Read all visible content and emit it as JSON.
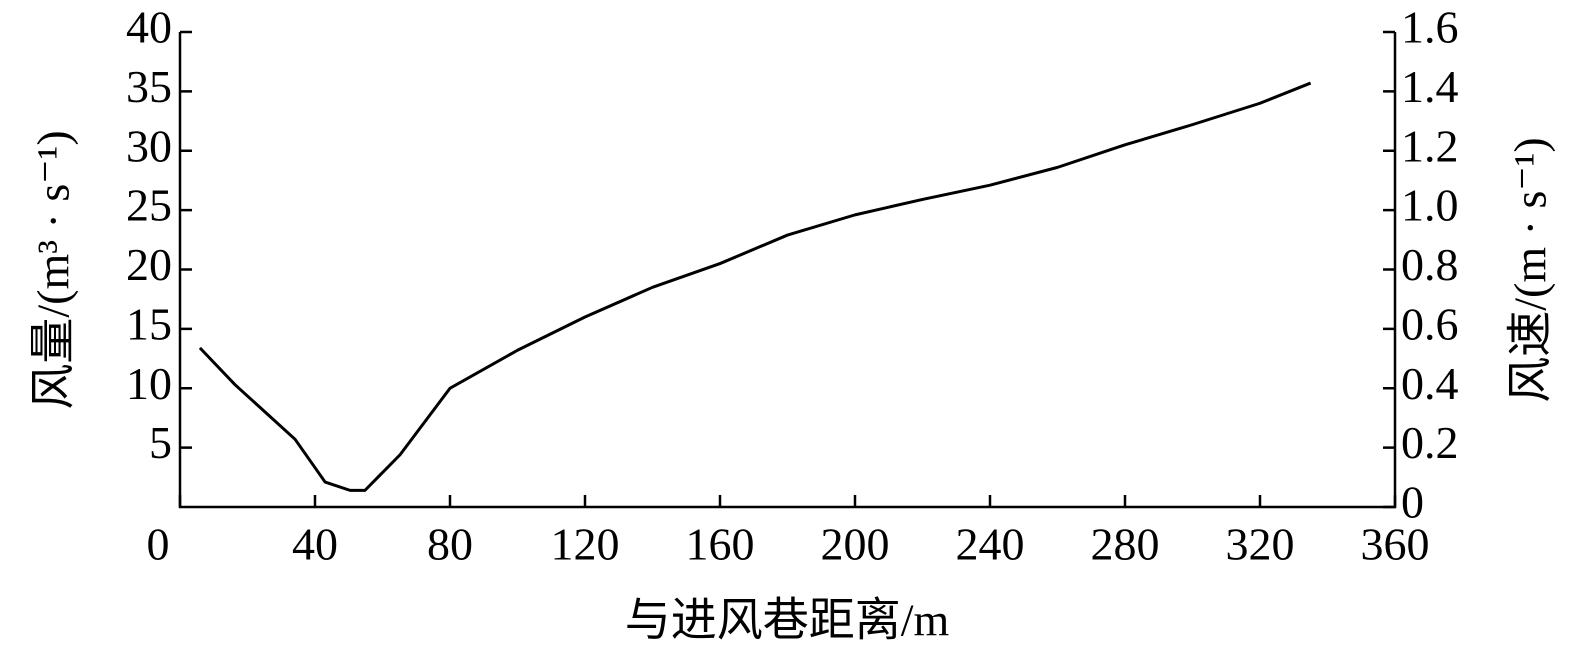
{
  "chart_data": {
    "type": "line",
    "x_label": "与进风巷距离/m",
    "y_label": "风量/(m³ · s⁻¹)",
    "y2_label": "风速/(m · s⁻¹)",
    "xlim": [
      0,
      360
    ],
    "xticks": [
      0,
      40,
      80,
      120,
      160,
      200,
      240,
      280,
      320,
      360
    ],
    "ylim": [
      0,
      40
    ],
    "yticks": [
      5,
      10,
      15,
      20,
      25,
      30,
      35,
      40
    ],
    "y2lim": [
      0,
      1.6
    ],
    "y2ticks": [
      0,
      0.2,
      0.4,
      0.6,
      {
        "value": 0.8,
        "label": "0.8"
      },
      {
        "value": 1,
        "label": "1.0"
      },
      1.2,
      1.4,
      1.6
    ],
    "grid": false,
    "series": [
      {
        "color": "#000000",
        "x": [
          5.9,
          16.3,
          34.1,
          43.0,
          50.4,
          54.8,
          65.2,
          80,
          100,
          120,
          140,
          160,
          180,
          200,
          220,
          240,
          260,
          280,
          300,
          320,
          335
        ],
        "values": [
          13.4,
          10.3,
          5.7,
          2.1,
          1.4,
          1.4,
          4.4,
          10.0,
          13.2,
          16.0,
          18.5,
          20.5,
          22.9,
          24.6,
          25.9,
          27.1,
          28.6,
          30.5,
          32.2,
          34.0,
          35.7
        ]
      }
    ]
  }
}
